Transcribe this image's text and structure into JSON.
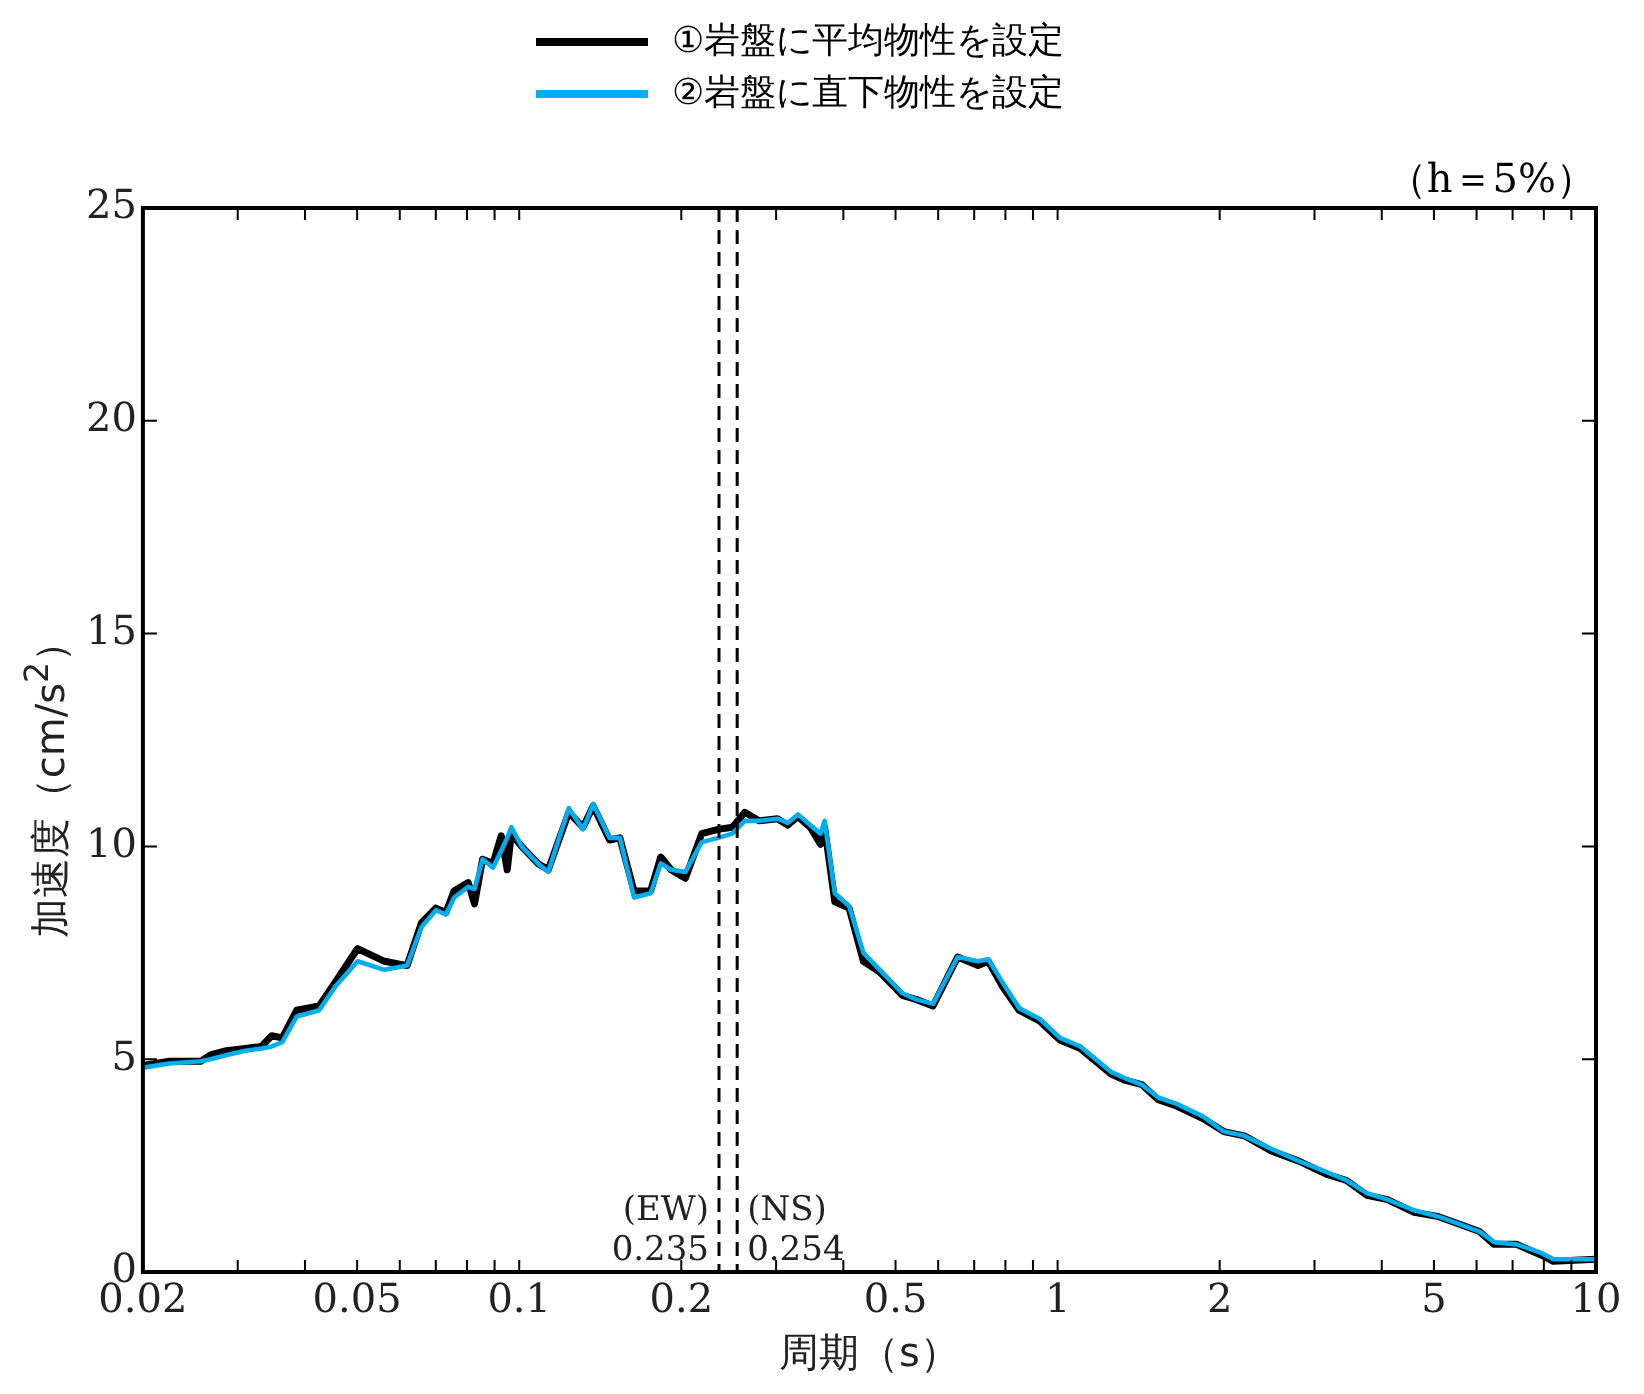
{
  "chart_data": {
    "type": "line",
    "xlabel": "周期（s）",
    "ylabel": "加速度（cm/s$^{2}$）",
    "annotations": [
      "（h＝5%）"
    ],
    "log": "x",
    "xlim": [
      0.02,
      10
    ],
    "ylim": [
      0,
      25
    ],
    "xticks": [
      0.02,
      {
        "value": 0.03,
        "label": null
      },
      {
        "value": 0.04,
        "label": null
      },
      0.05,
      {
        "value": 0.06,
        "label": null
      },
      {
        "value": 0.07,
        "label": null
      },
      {
        "value": 0.08,
        "label": null
      },
      {
        "value": 0.09,
        "label": null
      },
      0.1,
      0.2,
      {
        "value": 0.3,
        "label": null
      },
      {
        "value": 0.4,
        "label": null
      },
      0.5,
      {
        "value": 0.6,
        "label": null
      },
      {
        "value": 0.7,
        "label": null
      },
      {
        "value": 0.8,
        "label": null
      },
      {
        "value": 0.9,
        "label": null
      },
      1,
      2,
      {
        "value": 3,
        "label": null
      },
      {
        "value": 4,
        "label": null
      },
      5,
      {
        "value": 6,
        "label": null
      },
      {
        "value": 7,
        "label": null
      },
      {
        "value": 8,
        "label": null
      },
      {
        "value": 9,
        "label": null
      },
      10
    ],
    "yticks": [
      0,
      5,
      10,
      15,
      20,
      25
    ],
    "grid": false,
    "legend": "top",
    "marker": "none",
    "line_style": "solid",
    "x": [
      0.02,
      0.0224,
      0.0256,
      0.0267,
      0.0286,
      0.031,
      0.0332,
      0.0347,
      0.0363,
      0.0386,
      0.0425,
      0.0455,
      0.0501,
      0.0562,
      0.0619,
      0.0658,
      0.07,
      0.0731,
      0.0757,
      0.0804,
      0.0826,
      0.0855,
      0.0894,
      0.0926,
      0.095,
      0.0967,
      0.101,
      0.1083,
      0.1132,
      0.1236,
      0.1314,
      0.1372,
      0.1472,
      0.1538,
      0.1634,
      0.1754,
      0.1832,
      0.1914,
      0.2035,
      0.2183,
      0.2341,
      0.2489,
      0.2623,
      0.2789,
      0.3018,
      0.3153,
      0.3294,
      0.3471,
      0.3628,
      0.3692,
      0.3856,
      0.41,
      0.4358,
      0.4674,
      0.5147,
      0.5474,
      0.587,
      0.652,
      0.7115,
      0.7435,
      0.7907,
      0.8479,
      0.9256,
      1.01,
      1.102,
      1.257,
      1.337,
      1.434,
      1.538,
      1.664,
      1.865,
      2.036,
      2.222,
      2.489,
      2.814,
      3.153,
      3.442,
      3.757,
      4.101,
      4.594,
      5.105,
      6.079,
      6.465,
      7.117,
      7.907,
      8.333,
      10
    ],
    "series": [
      {
        "name": "①岩盤に平均物性を設定",
        "color": "#000000",
        "values": [
          4.85,
          4.95,
          4.95,
          5.1,
          5.2,
          5.25,
          5.3,
          5.55,
          5.5,
          6.15,
          6.25,
          6.8,
          7.6,
          7.3,
          7.2,
          8.2,
          8.55,
          8.45,
          8.95,
          9.15,
          8.65,
          9.7,
          9.6,
          10.25,
          9.45,
          10.3,
          10.0,
          9.6,
          9.45,
          10.8,
          10.45,
          10.95,
          10.15,
          10.2,
          8.95,
          8.95,
          9.75,
          9.45,
          9.25,
          10.3,
          10.4,
          10.45,
          10.8,
          10.6,
          10.65,
          10.5,
          10.7,
          10.45,
          10.05,
          10.45,
          8.7,
          8.55,
          7.3,
          7.05,
          6.5,
          6.4,
          6.25,
          7.4,
          7.2,
          7.3,
          6.7,
          6.15,
          5.9,
          5.45,
          5.25,
          4.65,
          4.5,
          4.4,
          4.05,
          3.9,
          3.6,
          3.3,
          3.2,
          2.85,
          2.6,
          2.3,
          2.15,
          1.8,
          1.7,
          1.4,
          1.3,
          0.95,
          0.65,
          0.65,
          0.4,
          0.25,
          0.3
        ]
      },
      {
        "name": "②岩盤に直下物性を設定",
        "color": "#00aeef",
        "values": [
          4.8,
          4.9,
          4.95,
          5.0,
          5.1,
          5.2,
          5.25,
          5.3,
          5.4,
          6.0,
          6.15,
          6.7,
          7.3,
          7.1,
          7.2,
          8.1,
          8.5,
          8.4,
          8.8,
          9.05,
          9.0,
          9.7,
          9.5,
          9.9,
          10.2,
          10.45,
          10.0,
          9.6,
          9.4,
          10.9,
          10.4,
          11.0,
          10.2,
          10.2,
          8.8,
          8.9,
          9.6,
          9.45,
          9.4,
          10.1,
          10.2,
          10.3,
          10.6,
          10.6,
          10.65,
          10.55,
          10.75,
          10.5,
          10.3,
          10.6,
          8.9,
          8.6,
          7.5,
          7.1,
          6.55,
          6.4,
          6.3,
          7.4,
          7.3,
          7.35,
          6.8,
          6.2,
          5.95,
          5.5,
          5.3,
          4.7,
          4.55,
          4.4,
          4.1,
          3.95,
          3.65,
          3.3,
          3.2,
          2.9,
          2.6,
          2.35,
          2.15,
          1.85,
          1.7,
          1.45,
          1.3,
          0.95,
          0.7,
          0.65,
          0.45,
          0.3,
          0.3
        ]
      }
    ],
    "ref_lines": [
      {
        "axis": "x",
        "value": 0.235,
        "label": "(EW)\n0.235",
        "color": "#000000",
        "line_style": "dashed"
      },
      {
        "axis": "x",
        "value": 0.254,
        "label": "(NS)\n0.254",
        "color": "#000000",
        "line_style": "dashed"
      }
    ]
  }
}
